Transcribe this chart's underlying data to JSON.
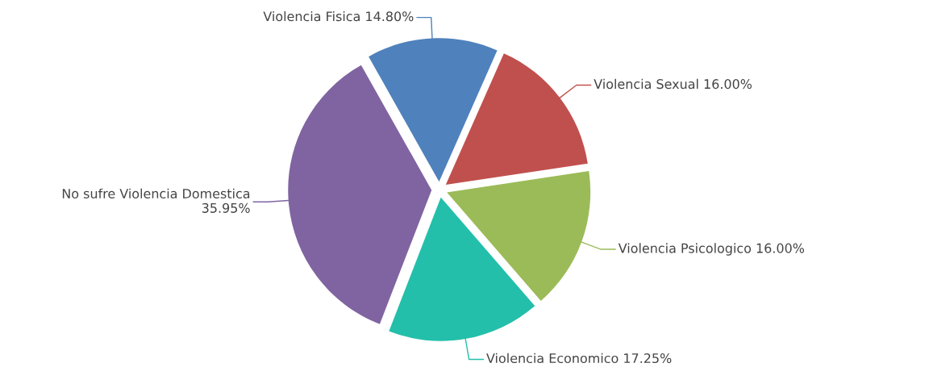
{
  "chart_data": {
    "type": "pie",
    "categories": [
      "Violencia Fisica",
      "Violencia Sexual",
      "Violencia Psicologico",
      "Violencia Economico",
      "No sufre Violencia Domestica"
    ],
    "values": [
      14.8,
      16.0,
      16.0,
      17.25,
      35.95
    ],
    "value_labels": [
      "14.80%",
      "16.00%",
      "16.00%",
      "17.25%",
      "35.95%"
    ],
    "colors": [
      "#4f81bc",
      "#c0504e",
      "#9bbb58",
      "#23bfaa",
      "#8064a1"
    ]
  }
}
